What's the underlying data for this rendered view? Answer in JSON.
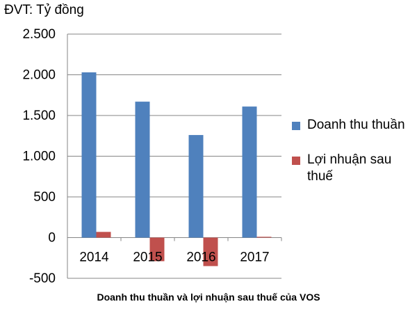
{
  "unit_label": "ĐVT: Tỷ đồng",
  "chart_data": {
    "type": "bar",
    "title": "Doanh thu thuần và lợi nhuận sau thuế của VOS",
    "xlabel": "",
    "ylabel": "",
    "categories": [
      "2014",
      "2015",
      "2016",
      "2017"
    ],
    "series": [
      {
        "name": "Doanh thu thuần",
        "color": "#4f81bd",
        "values": [
          2030,
          1670,
          1260,
          1610
        ]
      },
      {
        "name": "Lợi nhuận sau thuế",
        "color": "#c0504d",
        "values": [
          70,
          -290,
          -350,
          10
        ]
      }
    ],
    "ylim": [
      -500,
      2500
    ],
    "yticks": [
      2500,
      2000,
      1500,
      1000,
      500,
      0,
      -500
    ],
    "ytick_labels": [
      "2.500",
      "2.000",
      "1.500",
      "1.000",
      "500",
      "0",
      "-500"
    ],
    "grid": true,
    "legend_position": "right"
  }
}
